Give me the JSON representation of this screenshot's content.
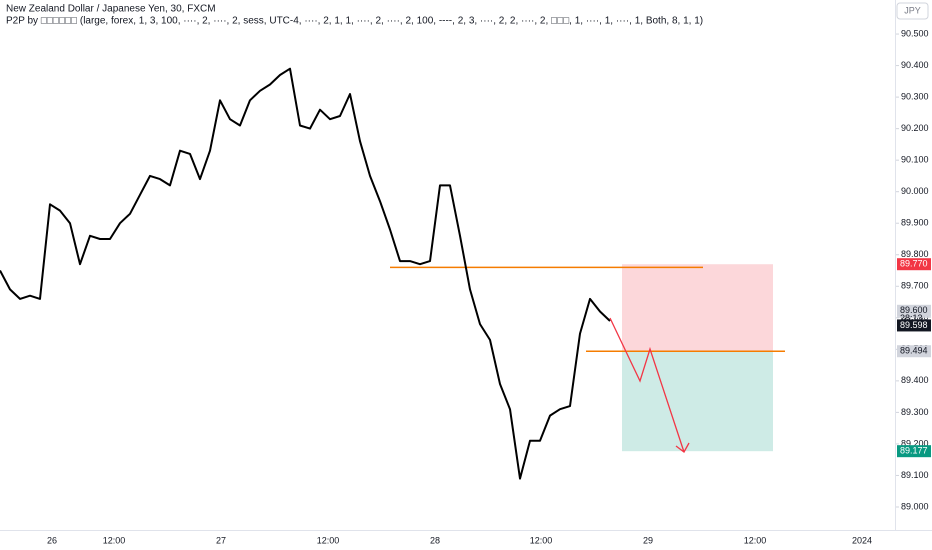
{
  "header": {
    "title": "New Zealand Dollar / Japanese Yen, 30, FXCM",
    "indicator": "P2P by □□□□□□ (large, forex, 1, 3, 100, ····, 2, ····, 2, sess, UTC-4, ····, 2, 1, 1, ····, 2, ····, 2, 100, ----, 2, 3, ····, 2, 2, ····, 2, □□□, 1, ····, 1, ····, 1, Both, 8, 1, 1)",
    "currency": "JPY"
  },
  "chart_data": {
    "type": "line",
    "color": "#000000",
    "values": [
      89.75,
      89.69,
      89.66,
      89.67,
      89.66,
      89.96,
      89.94,
      89.9,
      89.77,
      89.86,
      89.85,
      89.85,
      89.9,
      89.93,
      89.99,
      90.05,
      90.04,
      90.02,
      90.13,
      90.12,
      90.04,
      90.13,
      90.29,
      90.23,
      90.21,
      90.29,
      90.32,
      90.34,
      90.37,
      90.39,
      90.21,
      90.2,
      90.26,
      90.23,
      90.24,
      90.31,
      90.16,
      90.05,
      89.97,
      89.88,
      89.78,
      89.78,
      89.77,
      89.78,
      90.02,
      90.02,
      89.86,
      89.69,
      89.58,
      89.53,
      89.39,
      89.31,
      89.09,
      89.21,
      89.21,
      89.29,
      89.31,
      89.32,
      89.55,
      89.66,
      89.62,
      89.59
    ],
    "ylim": [
      88.927,
      90.608
    ],
    "yticks": [
      {
        "value": 89.0,
        "label": "89.000"
      },
      {
        "value": 89.1,
        "label": "89.100"
      },
      {
        "value": 89.2,
        "label": "89.200"
      },
      {
        "value": 89.3,
        "label": "89.300"
      },
      {
        "value": 89.4,
        "label": "89.400"
      },
      {
        "value": 89.5,
        "label": "89.500"
      },
      {
        "value": 89.6,
        "label": "89.600"
      },
      {
        "value": 89.7,
        "label": "89.700"
      },
      {
        "value": 89.8,
        "label": "89.800"
      },
      {
        "value": 89.9,
        "label": "89.900"
      },
      {
        "value": 90.0,
        "label": "90.000"
      },
      {
        "value": 90.1,
        "label": "90.100"
      },
      {
        "value": 90.2,
        "label": "90.200"
      },
      {
        "value": 90.3,
        "label": "90.300"
      },
      {
        "value": 90.4,
        "label": "90.400"
      },
      {
        "value": 90.5,
        "label": "90.500"
      }
    ],
    "x_labels": [
      "26",
      "12:00",
      "27",
      "12:00",
      "28",
      "12:00",
      "29",
      "12:00",
      "2024"
    ],
    "levels": [
      {
        "value": 89.76,
        "color": "#f57c00"
      },
      {
        "value": 89.494,
        "color": "#f57c00"
      }
    ],
    "position": {
      "stop": 89.77,
      "entry": 89.494,
      "target": 89.177
    },
    "price_labels": [
      {
        "value": 89.77,
        "label": "89.770",
        "color": "#f23645"
      },
      {
        "value": 89.6,
        "label": "89.600",
        "color": "#d1d4dc"
      },
      {
        "value": 89.598,
        "label": "89.598",
        "color": "#131722"
      },
      {
        "value": 89.494,
        "label": "89.494",
        "color": "#d1d4dc"
      },
      {
        "value": 89.177,
        "label": "89.177",
        "color": "#089981"
      }
    ],
    "countdown": "28:13"
  }
}
